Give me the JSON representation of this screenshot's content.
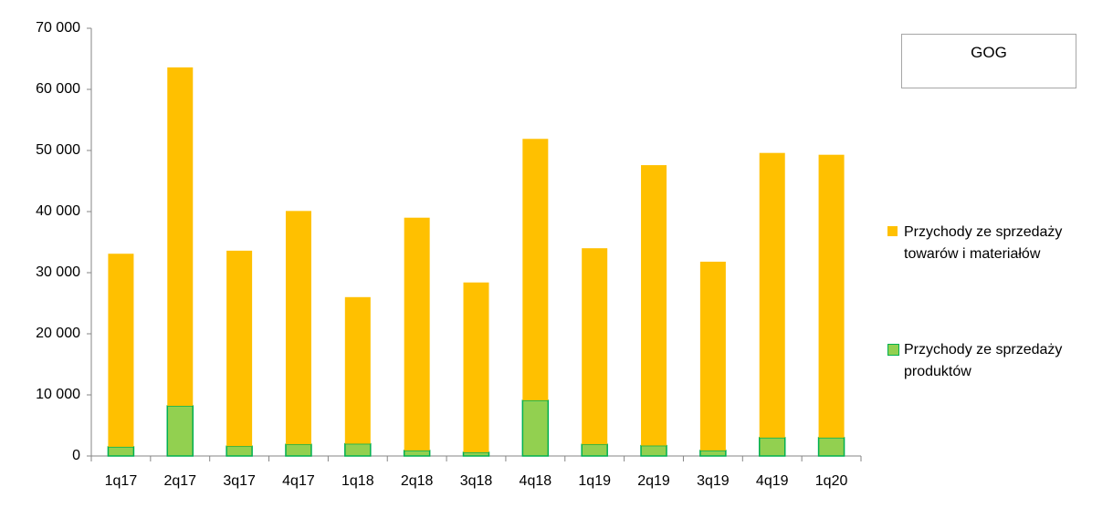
{
  "chart_data": {
    "type": "stacked_bar",
    "title": "GOG",
    "categories": [
      "1q17",
      "2q17",
      "3q17",
      "4q17",
      "1q18",
      "2q18",
      "3q18",
      "4q18",
      "1q19",
      "2q19",
      "3q19",
      "4q19",
      "1q20"
    ],
    "series": [
      {
        "name": "Przychody ze sprzedaży produktów",
        "color": "#92d050",
        "values": [
          1500,
          8200,
          1600,
          1900,
          2000,
          900,
          600,
          9100,
          1900,
          1700,
          900,
          3000,
          3000
        ]
      },
      {
        "name": "Przychody ze sprzedaży towarów i materiałów",
        "color": "#ffc000",
        "values": [
          31600,
          55400,
          32000,
          38200,
          24000,
          38100,
          27800,
          42800,
          32100,
          45900,
          30900,
          46600,
          46300
        ]
      }
    ],
    "ylim": [
      0,
      70000
    ],
    "yticks": [
      0,
      {
        "value": 10000,
        "label": "10 000"
      },
      {
        "value": 20000,
        "label": "20 000"
      },
      {
        "value": 30000,
        "label": "30 000"
      },
      {
        "value": 40000,
        "label": "40 000"
      },
      {
        "value": 50000,
        "label": "50 000"
      },
      {
        "value": 60000,
        "label": "60 000"
      },
      {
        "value": 70000,
        "label": "70 000"
      }
    ],
    "grid": false,
    "legend": "right"
  }
}
